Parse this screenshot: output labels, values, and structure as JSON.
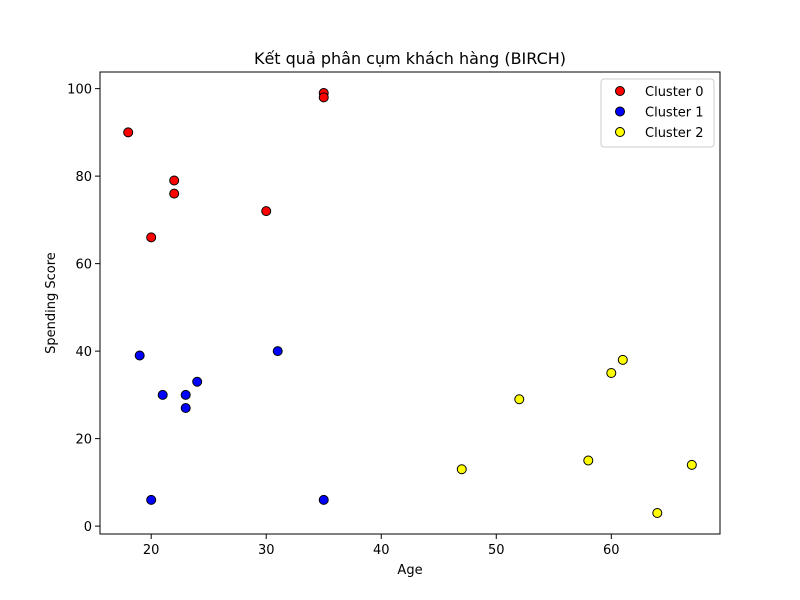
{
  "chart_data": {
    "type": "scatter",
    "title": "Kết quả phân cụm khách hàng (BIRCH)",
    "xlabel": "Age",
    "ylabel": "Spending Score",
    "xlim": [
      15.55,
      69.45
    ],
    "ylim": [
      -1.8,
      103.8
    ],
    "xticks": [
      20,
      30,
      40,
      50,
      60
    ],
    "yticks": [
      0,
      20,
      40,
      60,
      80,
      100
    ],
    "grid": false,
    "legend_position": "top-right",
    "series": [
      {
        "name": "Cluster 0",
        "color": "#ff0000",
        "points": [
          [
            18,
            90
          ],
          [
            20,
            66
          ],
          [
            22,
            79
          ],
          [
            22,
            76
          ],
          [
            30,
            72
          ],
          [
            35,
            99
          ],
          [
            35,
            98
          ]
        ]
      },
      {
        "name": "Cluster 1",
        "color": "#0000ff",
        "points": [
          [
            19,
            39
          ],
          [
            20,
            6
          ],
          [
            21,
            30
          ],
          [
            23,
            30
          ],
          [
            23,
            27
          ],
          [
            24,
            33
          ],
          [
            31,
            40
          ],
          [
            35,
            6
          ]
        ]
      },
      {
        "name": "Cluster 2",
        "color": "#ffff00",
        "points": [
          [
            47,
            13
          ],
          [
            52,
            29
          ],
          [
            58,
            15
          ],
          [
            60,
            35
          ],
          [
            61,
            38
          ],
          [
            64,
            3
          ],
          [
            67,
            14
          ]
        ]
      }
    ]
  }
}
